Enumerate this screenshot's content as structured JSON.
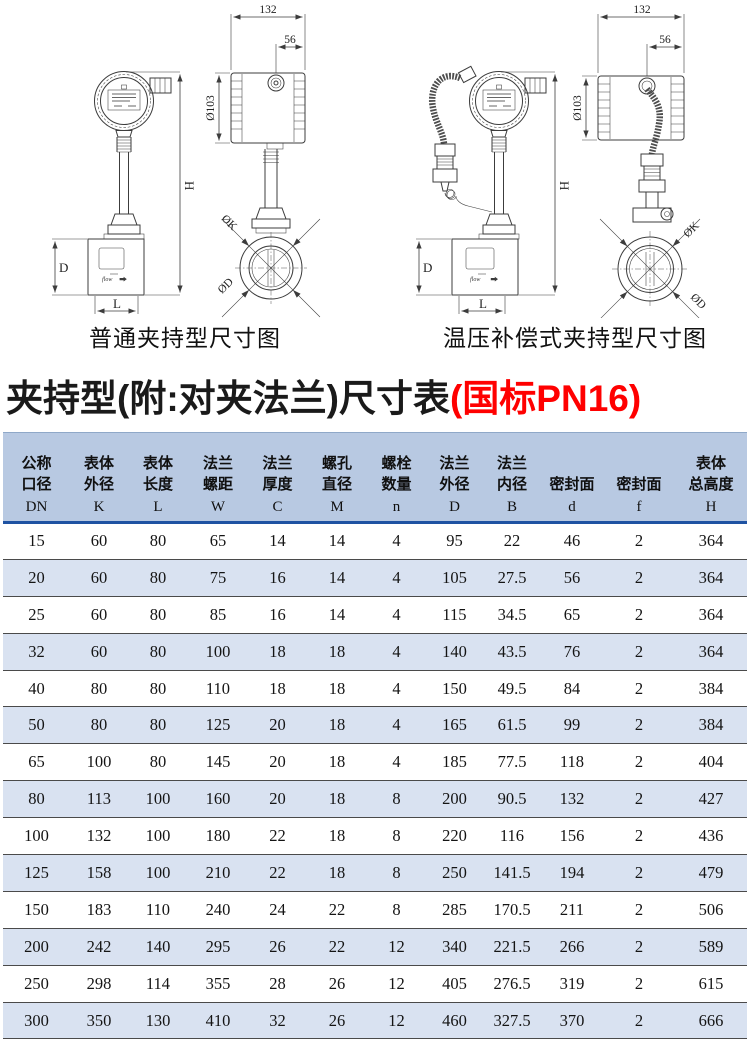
{
  "drawings": {
    "left": {
      "caption": "普通夹持型尺寸图",
      "flow_label": "flow",
      "dims": {
        "top_width": "132",
        "top_inner": "56",
        "head_dia": "Ø103",
        "total_height": "H",
        "body_height": "D",
        "body_length": "L",
        "bolt_circle": "ØK",
        "flange_od": "ØD"
      }
    },
    "right": {
      "caption": "温压补偿式夹持型尺寸图",
      "flow_label": "flow",
      "dims": {
        "top_width": "132",
        "top_inner": "56",
        "head_dia": "Ø103",
        "total_height": "H",
        "body_height": "D",
        "body_length": "L",
        "bolt_circle": "ØK",
        "flange_od": "ØD"
      }
    }
  },
  "title": {
    "black": "夹持型(附:对夹法兰)尺寸表",
    "red": "(国标PN16)",
    "red_color": "#ff0000"
  },
  "table": {
    "colors": {
      "header_bg": "#b8c9e2",
      "alt_row_bg": "#d9e2f1",
      "header_rule": "#1e52a2",
      "row_rule": "#4a4a4a"
    },
    "columns": [
      {
        "name": "公称\n口径",
        "symbol": "DN"
      },
      {
        "name": "表体\n外径",
        "symbol": "K"
      },
      {
        "name": "表体\n长度",
        "symbol": "L"
      },
      {
        "name": "法兰\n螺距",
        "symbol": "W"
      },
      {
        "name": "法兰\n厚度",
        "symbol": "C"
      },
      {
        "name": "螺孔\n直径",
        "symbol": "M"
      },
      {
        "name": "螺栓\n数量",
        "symbol": "n"
      },
      {
        "name": "法兰\n外径",
        "symbol": "D"
      },
      {
        "name": "法兰\n内径",
        "symbol": "B"
      },
      {
        "name": "密封面",
        "symbol": "d"
      },
      {
        "name": "密封面",
        "symbol": "f"
      },
      {
        "name": "表体\n总高度",
        "symbol": "H"
      }
    ],
    "rows": [
      [
        "15",
        "60",
        "80",
        "65",
        "14",
        "14",
        "4",
        "95",
        "22",
        "46",
        "2",
        "364"
      ],
      [
        "20",
        "60",
        "80",
        "75",
        "16",
        "14",
        "4",
        "105",
        "27.5",
        "56",
        "2",
        "364"
      ],
      [
        "25",
        "60",
        "80",
        "85",
        "16",
        "14",
        "4",
        "115",
        "34.5",
        "65",
        "2",
        "364"
      ],
      [
        "32",
        "60",
        "80",
        "100",
        "18",
        "18",
        "4",
        "140",
        "43.5",
        "76",
        "2",
        "364"
      ],
      [
        "40",
        "80",
        "80",
        "110",
        "18",
        "18",
        "4",
        "150",
        "49.5",
        "84",
        "2",
        "384"
      ],
      [
        "50",
        "80",
        "80",
        "125",
        "20",
        "18",
        "4",
        "165",
        "61.5",
        "99",
        "2",
        "384"
      ],
      [
        "65",
        "100",
        "80",
        "145",
        "20",
        "18",
        "4",
        "185",
        "77.5",
        "118",
        "2",
        "404"
      ],
      [
        "80",
        "113",
        "100",
        "160",
        "20",
        "18",
        "8",
        "200",
        "90.5",
        "132",
        "2",
        "427"
      ],
      [
        "100",
        "132",
        "100",
        "180",
        "22",
        "18",
        "8",
        "220",
        "116",
        "156",
        "2",
        "436"
      ],
      [
        "125",
        "158",
        "100",
        "210",
        "22",
        "18",
        "8",
        "250",
        "141.5",
        "194",
        "2",
        "479"
      ],
      [
        "150",
        "183",
        "110",
        "240",
        "24",
        "22",
        "8",
        "285",
        "170.5",
        "211",
        "2",
        "506"
      ],
      [
        "200",
        "242",
        "140",
        "295",
        "26",
        "22",
        "12",
        "340",
        "221.5",
        "266",
        "2",
        "589"
      ],
      [
        "250",
        "298",
        "114",
        "355",
        "28",
        "26",
        "12",
        "405",
        "276.5",
        "319",
        "2",
        "615"
      ],
      [
        "300",
        "350",
        "130",
        "410",
        "32",
        "26",
        "12",
        "460",
        "327.5",
        "370",
        "2",
        "666"
      ]
    ]
  }
}
